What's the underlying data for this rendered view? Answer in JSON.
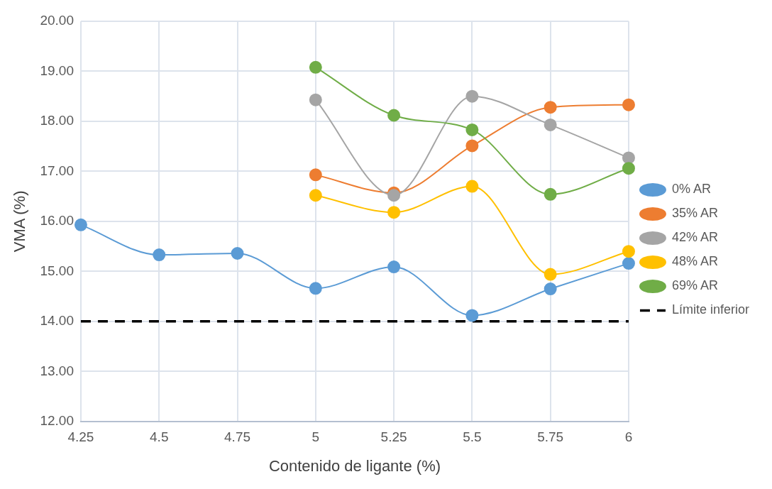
{
  "chart_data": {
    "type": "line",
    "xlabel": "Contenido de ligante (%)",
    "ylabel": "VMA (%)",
    "categories": [
      "4.25",
      "4.5",
      "4.75",
      "5",
      "5.25",
      "5.5",
      "5.75",
      "6"
    ],
    "series": [
      {
        "name": "0% AR",
        "color": "#5b9bd5",
        "values": [
          15.93,
          15.33,
          15.36,
          14.66,
          15.09,
          14.12,
          14.65,
          15.16
        ]
      },
      {
        "name": "35% AR",
        "color": "#ed7d31",
        "values": [
          null,
          null,
          null,
          16.93,
          16.57,
          17.51,
          18.28,
          18.33
        ]
      },
      {
        "name": "42% AR",
        "color": "#a5a5a5",
        "values": [
          null,
          null,
          null,
          18.43,
          16.52,
          18.5,
          17.93,
          17.27
        ]
      },
      {
        "name": "48% AR",
        "color": "#ffc000",
        "values": [
          null,
          null,
          null,
          16.52,
          16.18,
          16.7,
          14.94,
          15.4
        ]
      },
      {
        "name": "69% AR",
        "color": "#70ad47",
        "values": [
          null,
          null,
          null,
          19.08,
          18.12,
          17.83,
          16.54,
          17.06
        ]
      }
    ],
    "ref_lines": [
      {
        "axis": "y",
        "value": 14,
        "label": "Límite inferior",
        "color": "#000000",
        "line_style": "dashed"
      }
    ],
    "ylim": [
      12,
      20
    ],
    "yticks": [
      {
        "value": 12,
        "label": "12.00"
      },
      {
        "value": 13,
        "label": "13.00"
      },
      {
        "value": 14,
        "label": "14.00"
      },
      {
        "value": 15,
        "label": "15.00"
      },
      {
        "value": 16,
        "label": "16.00"
      },
      {
        "value": 17,
        "label": "17.00"
      },
      {
        "value": 18,
        "label": "18.00"
      },
      {
        "value": 19,
        "label": "19.00"
      },
      {
        "value": 20,
        "label": "20.00"
      }
    ],
    "grid": true,
    "legend": "right",
    "marker": "circle",
    "line_style": "solid"
  }
}
